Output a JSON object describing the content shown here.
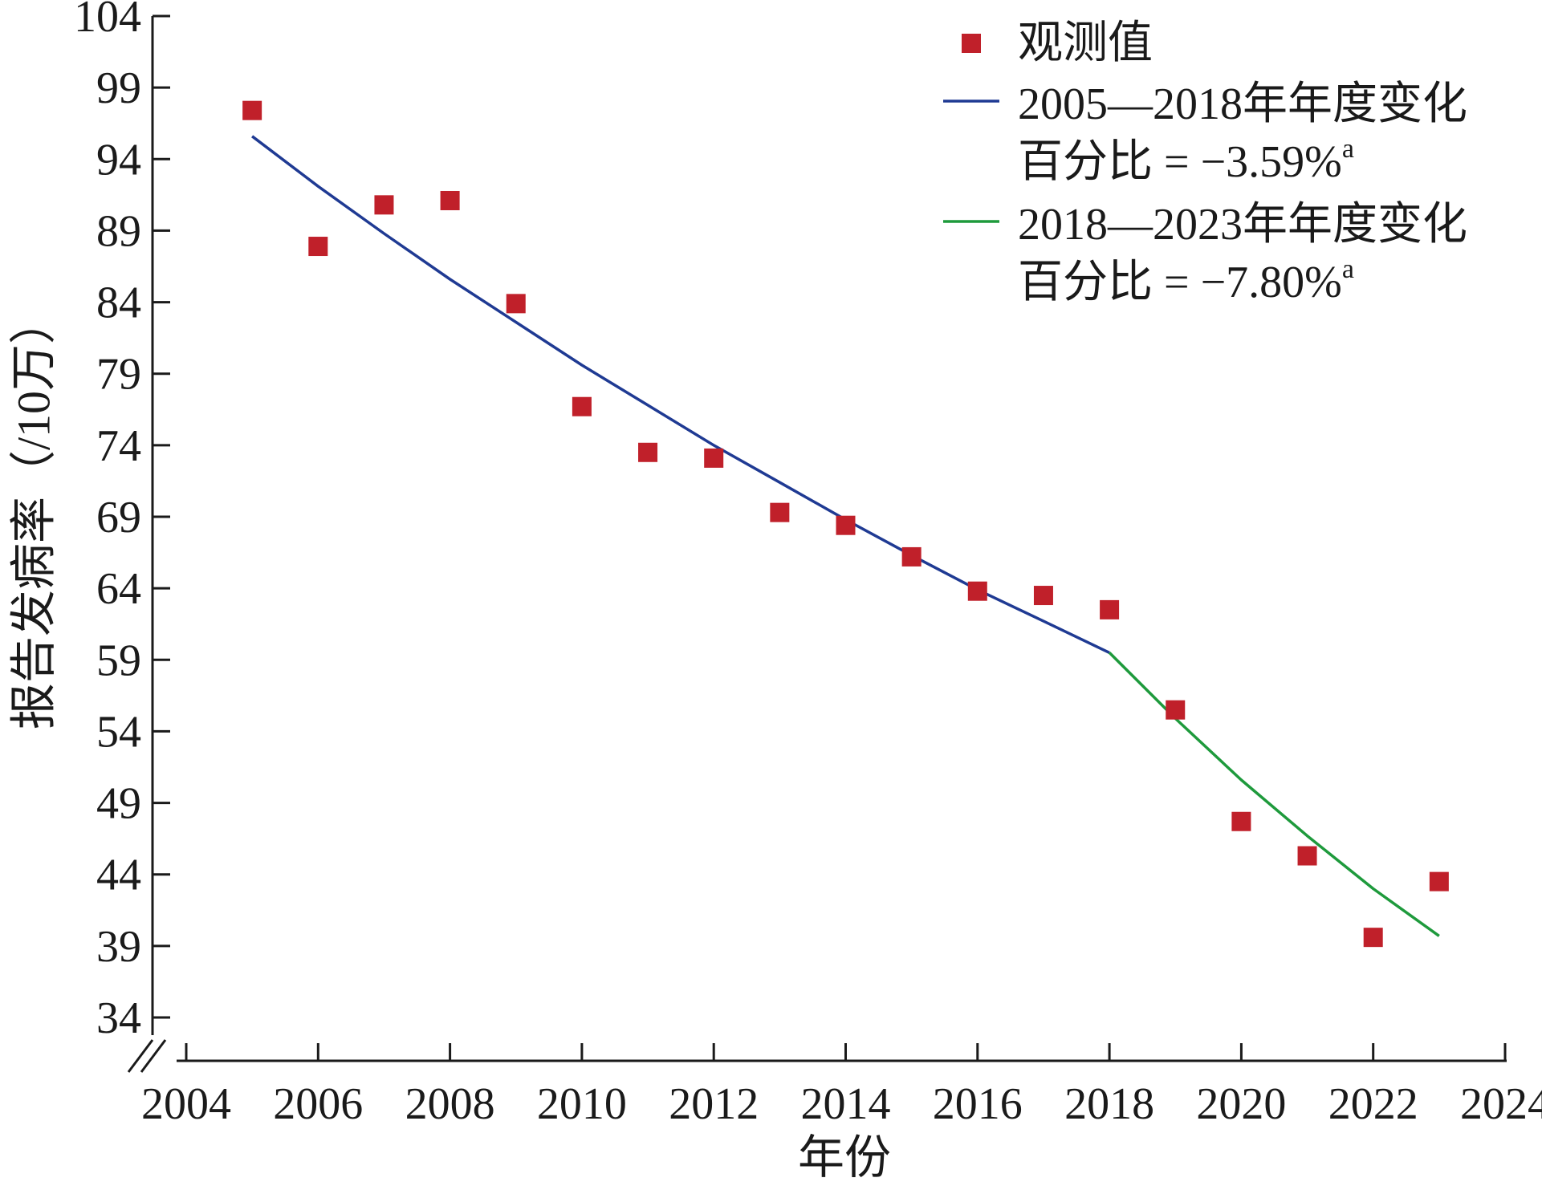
{
  "chart_data": {
    "type": "scatter",
    "title": "",
    "xlabel": "年份",
    "ylabel": "报告发病率（/10万）",
    "xlim": [
      2004,
      2024
    ],
    "ylim": [
      34,
      104
    ],
    "x_ticks": [
      2004,
      2006,
      2008,
      2010,
      2012,
      2014,
      2016,
      2018,
      2020,
      2022,
      2024
    ],
    "y_ticks": [
      34,
      39,
      44,
      49,
      54,
      59,
      64,
      69,
      74,
      79,
      84,
      89,
      94,
      99,
      104
    ],
    "y_axis_break": true,
    "grid": false,
    "legend_position": "top-right",
    "series": [
      {
        "name": "观测值",
        "kind": "scatter",
        "marker": "square",
        "color": "#c0202a",
        "points": [
          {
            "x": 2005,
            "y": 97.4
          },
          {
            "x": 2006,
            "y": 87.9
          },
          {
            "x": 2007,
            "y": 90.8
          },
          {
            "x": 2008,
            "y": 91.1
          },
          {
            "x": 2009,
            "y": 83.9
          },
          {
            "x": 2010,
            "y": 76.7
          },
          {
            "x": 2011,
            "y": 73.5
          },
          {
            "x": 2012,
            "y": 73.1
          },
          {
            "x": 2013,
            "y": 69.3
          },
          {
            "x": 2014,
            "y": 68.4
          },
          {
            "x": 2015,
            "y": 66.2
          },
          {
            "x": 2016,
            "y": 63.8
          },
          {
            "x": 2017,
            "y": 63.5
          },
          {
            "x": 2018,
            "y": 62.5
          },
          {
            "x": 2019,
            "y": 55.5
          },
          {
            "x": 2020,
            "y": 47.7
          },
          {
            "x": 2021,
            "y": 45.3
          },
          {
            "x": 2022,
            "y": 39.6
          },
          {
            "x": 2023,
            "y": 43.5
          }
        ]
      },
      {
        "name": "2005—2018年年度变化",
        "kind": "line",
        "color": "#1f3a93",
        "points": [
          {
            "x": 2005,
            "y": 95.6
          },
          {
            "x": 2006,
            "y": 92.1
          },
          {
            "x": 2007,
            "y": 88.8
          },
          {
            "x": 2008,
            "y": 85.6
          },
          {
            "x": 2009,
            "y": 82.6
          },
          {
            "x": 2010,
            "y": 79.6
          },
          {
            "x": 2011,
            "y": 76.8
          },
          {
            "x": 2012,
            "y": 74.0
          },
          {
            "x": 2013,
            "y": 71.4
          },
          {
            "x": 2014,
            "y": 68.8
          },
          {
            "x": 2015,
            "y": 66.3
          },
          {
            "x": 2016,
            "y": 63.9
          },
          {
            "x": 2017,
            "y": 61.7
          },
          {
            "x": 2018,
            "y": 59.5
          }
        ]
      },
      {
        "name": "2018—2023年年度变化",
        "kind": "line",
        "color": "#1e9a3c",
        "points": [
          {
            "x": 2018,
            "y": 59.5
          },
          {
            "x": 2019,
            "y": 54.9
          },
          {
            "x": 2020,
            "y": 50.6
          },
          {
            "x": 2021,
            "y": 46.7
          },
          {
            "x": 2022,
            "y": 43.0
          },
          {
            "x": 2023,
            "y": 39.7
          }
        ]
      }
    ],
    "legend": [
      {
        "label": "观测值",
        "symbol": "square",
        "color": "#c0202a"
      },
      {
        "label": "2005—2018年年度变化",
        "symbol": "line",
        "color": "#1f3a93",
        "sub_prefix": "百分比 = −3.59%",
        "sub_sup": "a"
      },
      {
        "label": "2018—2023年年度变化",
        "symbol": "line",
        "color": "#1e9a3c",
        "sub_prefix": "百分比 = −7.80%",
        "sub_sup": "a"
      }
    ]
  }
}
